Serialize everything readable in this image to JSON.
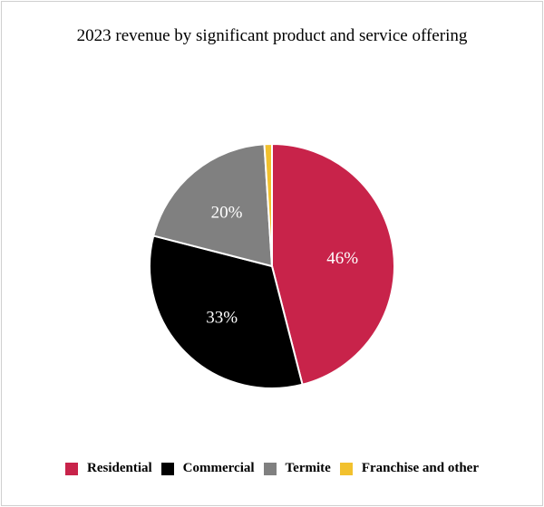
{
  "chart_data": {
    "type": "pie",
    "title": "2023 revenue by significant product and service offering",
    "slices": [
      {
        "label": "Residential",
        "value": 46,
        "data_label": "46%",
        "color": "#C8234A"
      },
      {
        "label": "Commercial",
        "value": 33,
        "data_label": "33%",
        "color": "#000000"
      },
      {
        "label": "Termite",
        "value": 20,
        "data_label": "20%",
        "color": "#808080"
      },
      {
        "label": "Franchise and other",
        "value": 1,
        "data_label": "",
        "color": "#F2C12E"
      }
    ],
    "start_angle": "top",
    "direction": "clockwise",
    "legend_position": "bottom"
  }
}
